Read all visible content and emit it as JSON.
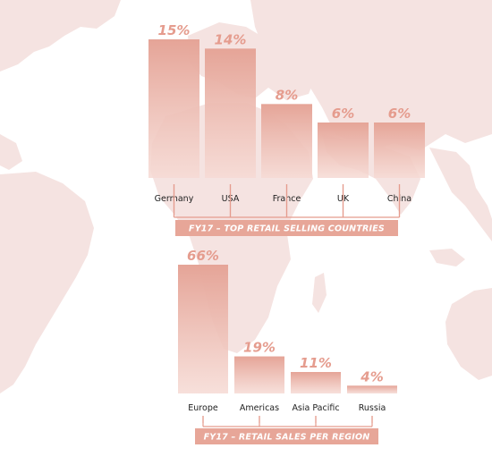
{
  "colors": {
    "bar_top": "#e5a497",
    "bar_bottom": "#f6dad4",
    "value_text": "#e59c8e",
    "banner_fill": "#e7a698",
    "banner_text": "#ffffff",
    "connector": "#e59c8e",
    "map_land": "#f5e3e1",
    "background": "#ffffff"
  },
  "chart_data": [
    {
      "type": "bar",
      "title": "FY17 – TOP RETAIL SELLING COUNTRIES",
      "categories": [
        "Germany",
        "USA",
        "France",
        "UK",
        "China"
      ],
      "values": [
        15,
        14,
        8,
        6,
        6
      ],
      "value_labels": [
        "15%",
        "14%",
        "8%",
        "6%",
        "6%"
      ],
      "unit": "%",
      "ylim": [
        0,
        15
      ],
      "grid": false,
      "legend": "none"
    },
    {
      "type": "bar",
      "title": "FY17 – RETAIL SALES PER REGION",
      "categories": [
        "Europe",
        "Americas",
        "Asia Pacific",
        "Russia"
      ],
      "values": [
        66,
        19,
        11,
        4
      ],
      "value_labels": [
        "66%",
        "19%",
        "11%",
        "4%"
      ],
      "unit": "%",
      "ylim": [
        0,
        66
      ],
      "grid": false,
      "legend": "none"
    }
  ]
}
